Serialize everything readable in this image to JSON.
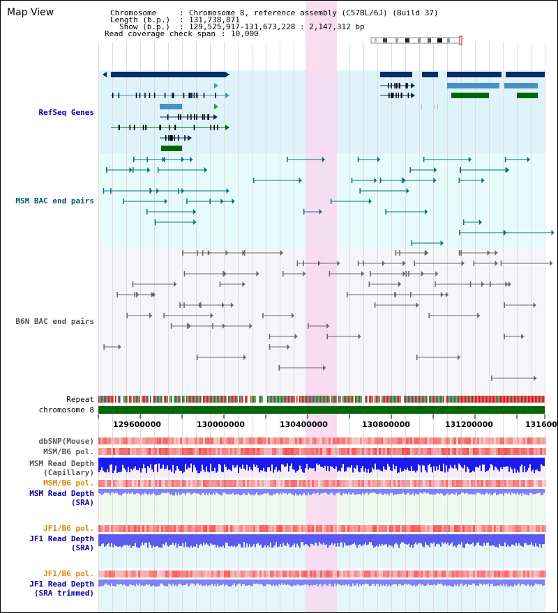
{
  "page": {
    "title": "Map View"
  },
  "info": {
    "chromosome_key": "Chromosome",
    "chromosome_value": "Chromosome 8, reference assembly (C57BL/6J) (Build 37)",
    "length_key": "Length (b.p.)",
    "length_value": "131,738,871",
    "show_key": "Show (b.p.)",
    "show_value": "129,525,917-131,673,228 : 2,147,312 bp",
    "coverage_key": "Read coverage check span",
    "coverage_value": "10,000"
  },
  "tracks": {
    "refseq": "RefSeq Genes",
    "msm_bac": "MSM BAC end pairs",
    "b6n_bac": "B6N BAC end pairs",
    "repeat": "Repeat",
    "chromosome": "chromosome 8",
    "dbsnp": "dbSNP(Mouse)",
    "msm_b6_pol": "MSM/B6 pol.",
    "msm_depth_cap_1": "MSM Read Depth",
    "msm_depth_cap_2": "(Capillary)",
    "msm_b6_pol_2": "MSM/B6 pol.",
    "msm_depth_sra_1": "MSM Read Depth",
    "msm_depth_sra_2": "(SRA)",
    "jf1_b6_pol": "JF1/B6 pol.",
    "jf1_depth_sra_1": "JF1 Read Depth",
    "jf1_depth_sra_2": "(SRA)",
    "jf1_b6_pol_2": "JF1/B6 pol.",
    "jf1_depth_trim_1": "JF1 Read Depth",
    "jf1_depth_trim_2": "(SRA trimmed)"
  },
  "axis": {
    "ticks": [
      "129600000",
      "130000000",
      "130400000",
      "130800000",
      "131200000",
      "131600"
    ]
  },
  "colors": {
    "refseq_bg": "#dff3fb",
    "msm_bac_bg": "#e6fbfb",
    "b6n_bac_bg": "#f5f5fa",
    "highlight": "#f8d8f0",
    "gene_dark": "#0a2a66",
    "gene_light": "#4a8fc4",
    "gene_green": "#006600",
    "label_blue": "#0000aa",
    "label_teal": "#005a70",
    "label_grey": "#555555",
    "label_orange": "#dd8800",
    "chromosome": "#0a660a",
    "depth_blue": "#1a1aee",
    "depth_light": "#8080f8"
  }
}
